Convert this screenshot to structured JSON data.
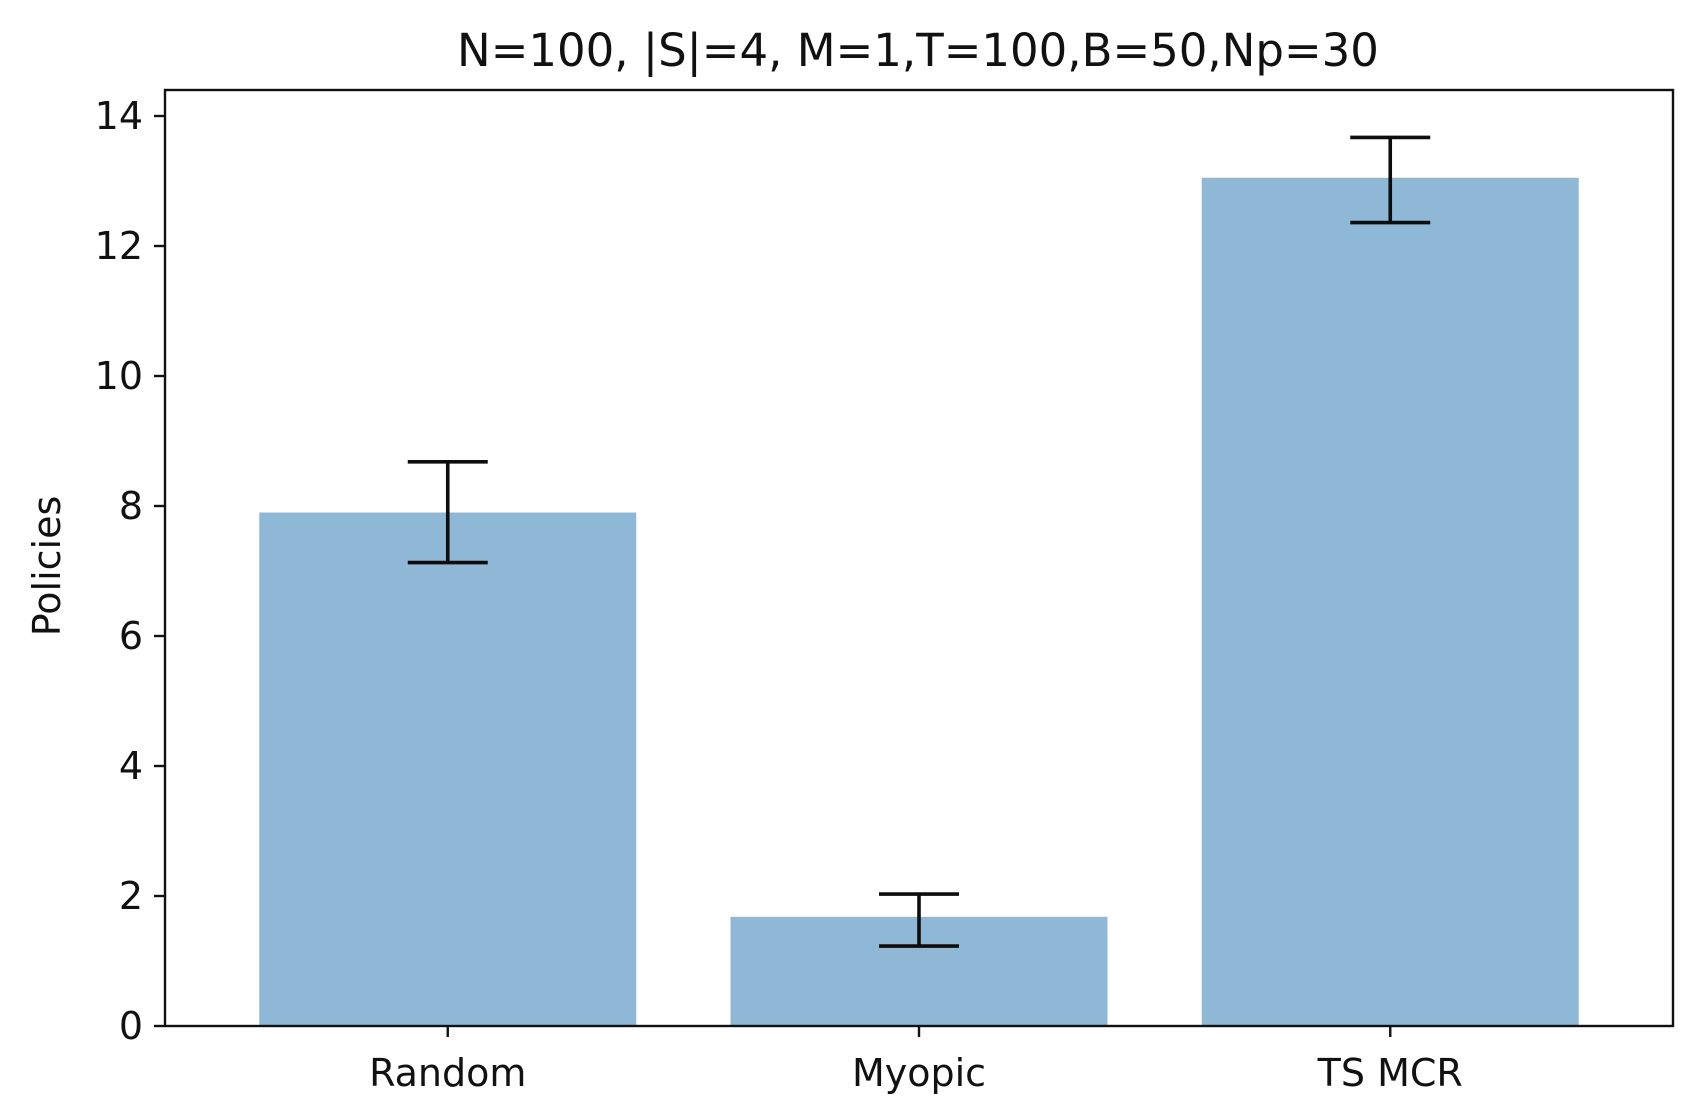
{
  "chart_data": {
    "type": "bar",
    "title": "N=100, |S|=4, M=1,T=100,B=50,Np=30",
    "xlabel": "",
    "ylabel": "Policies",
    "categories": [
      "Random",
      "Myopic",
      "TS MCR"
    ],
    "values": [
      7.9,
      1.68,
      13.05
    ],
    "error_low": [
      7.13,
      1.23,
      12.36
    ],
    "error_high": [
      8.68,
      2.03,
      13.67
    ],
    "ylim": [
      0,
      14.4
    ],
    "yticks": [
      "0",
      "2",
      "4",
      "6",
      "8",
      "10",
      "12",
      "14"
    ],
    "bar_color": "#8fb8d7",
    "error_color": "#0d0d0d",
    "grid": false,
    "legend": "none"
  }
}
